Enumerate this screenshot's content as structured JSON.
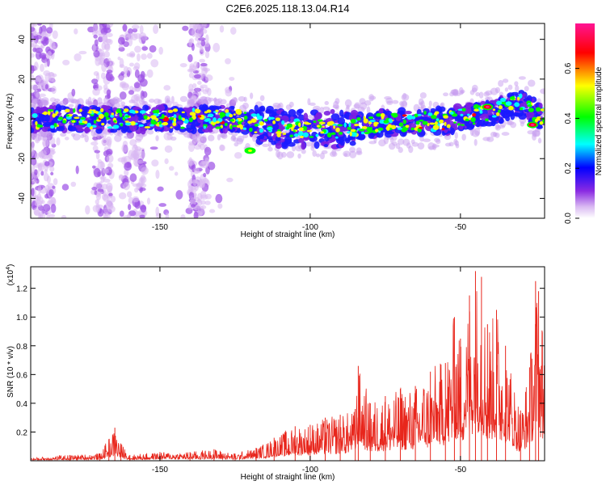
{
  "title": "C2E6.2025.118.13.04.R14",
  "chart_data": [
    {
      "type": "heatmap",
      "xlabel": "Height of straight line (km)",
      "ylabel": "Frequency (Hz)",
      "xlim": [
        -193,
        -22
      ],
      "ylim": [
        -50,
        48
      ],
      "xticks": [
        -150,
        -100,
        -50
      ],
      "yticks": [
        -40,
        -20,
        0,
        20,
        40
      ],
      "colorbar": {
        "label": "Normalized spectral amplitude",
        "range": [
          0,
          0.78
        ],
        "ticks": [
          "0.0",
          "0.2",
          "0.4",
          "0.6"
        ],
        "colormap": [
          "#ffffff",
          "#8a2be2",
          "#0000ff",
          "#00ffff",
          "#00ff00",
          "#ffff00",
          "#ff0000",
          "#ff1493"
        ]
      },
      "band_centerline": [
        {
          "x": -193,
          "y": 0
        },
        {
          "x": -150,
          "y": 0
        },
        {
          "x": -125,
          "y": 0
        },
        {
          "x": -110,
          "y": -5
        },
        {
          "x": -90,
          "y": -5
        },
        {
          "x": -75,
          "y": -2
        },
        {
          "x": -55,
          "y": -1
        },
        {
          "x": -40,
          "y": 3
        },
        {
          "x": -30,
          "y": 8
        },
        {
          "x": -22,
          "y": 0
        }
      ],
      "peak_points": [
        {
          "x": -41,
          "y": 6,
          "amplitude": 0.78
        },
        {
          "x": -26,
          "y": -3,
          "amplitude": 0.7
        },
        {
          "x": -120,
          "y": -16,
          "amplitude": 0.45
        }
      ]
    },
    {
      "type": "line",
      "xlabel": "Height of straight line (km)",
      "ylabel": "SNR (10 * v/v)",
      "y_multiplier": "(x10",
      "y_multiplier_exp": "4",
      "xlim": [
        -193,
        -22
      ],
      "ylim": [
        0,
        13500
      ],
      "xticks": [
        -150,
        -100,
        -50
      ],
      "ytick_labels": [
        "0.2",
        "0.4",
        "0.6",
        "0.8",
        "1.0",
        "1.2"
      ],
      "series": [
        {
          "color": "#e8261c",
          "x": [
            -193,
            -180,
            -170,
            -167,
            -165,
            -163,
            -160,
            -150,
            -140,
            -132,
            -125,
            -118,
            -112,
            -105,
            -100,
            -95,
            -90,
            -85,
            -84,
            -80,
            -75,
            -70,
            -65,
            -60,
            -55,
            -52,
            -50,
            -47,
            -45,
            -43,
            -41,
            -38,
            -35,
            -30,
            -27,
            -25,
            -24,
            -22
          ],
          "y": [
            200,
            400,
            500,
            1500,
            2300,
            1200,
            400,
            600,
            600,
            800,
            500,
            900,
            1600,
            2400,
            2500,
            3000,
            3200,
            3600,
            6600,
            4000,
            4500,
            5000,
            5200,
            6200,
            6800,
            10000,
            8500,
            11500,
            13200,
            12800,
            9500,
            10500,
            8000,
            3500,
            6500,
            12500,
            11800,
            9000
          ]
        }
      ]
    }
  ]
}
